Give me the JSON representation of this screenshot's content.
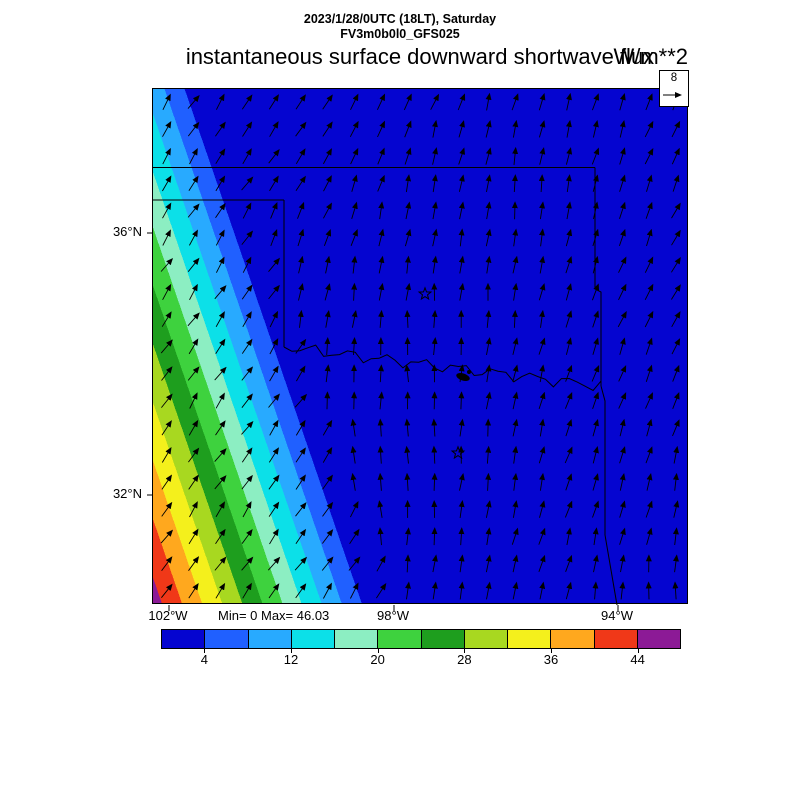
{
  "header": {
    "time_label": "2023/1/28/0UTC (18LT), Saturday",
    "model_label": "FV3m0b0l0_GFS025"
  },
  "title": {
    "text": "instantaneous surface downward shortwave flux",
    "units": "W/m**2"
  },
  "map": {
    "minmax_label": "Min= 0 Max= 46.03",
    "lat_labels": [
      "36°N",
      "32°N"
    ],
    "lon_labels": [
      "102°W",
      "98°W",
      "94°W"
    ],
    "reference_vector_label": "8"
  },
  "chart_data": {
    "type": "heatmap",
    "title": "instantaneous surface downward shortwave flux",
    "units": "W/m**2",
    "valid_time": "2023/1/28/0UTC (18LT), Saturday",
    "model_run": "FV3m0b0l0_GFS025",
    "field_min": 0,
    "field_max": 46.03,
    "wind_reference_value": 8,
    "lat_ticks_deg_n": [
      36,
      32
    ],
    "lon_ticks_deg_w": [
      102,
      98,
      94
    ],
    "colorbar": {
      "levels": [
        0,
        4,
        8,
        12,
        16,
        20,
        24,
        28,
        32,
        36,
        40,
        44,
        48
      ],
      "labeled_levels": [
        4,
        12,
        20,
        28,
        36,
        44
      ],
      "colors": [
        "#0505d0",
        "#2060ff",
        "#28aaff",
        "#0ce0e8",
        "#8ceec2",
        "#3ed23e",
        "#1e9e1e",
        "#a8d820",
        "#f4f01c",
        "#ffa81e",
        "#f03818",
        "#8c1a96"
      ]
    },
    "field_pattern": "flux is 0 (deep blue) over most of the domain; values increase in diagonal bands toward the southwest corner, reaching the maximum 46.03",
    "wind_field": "arrows over entire map, generally pointing northward with slight eastward tilt; stronger northeastward tilt in the southwest gradient region"
  }
}
